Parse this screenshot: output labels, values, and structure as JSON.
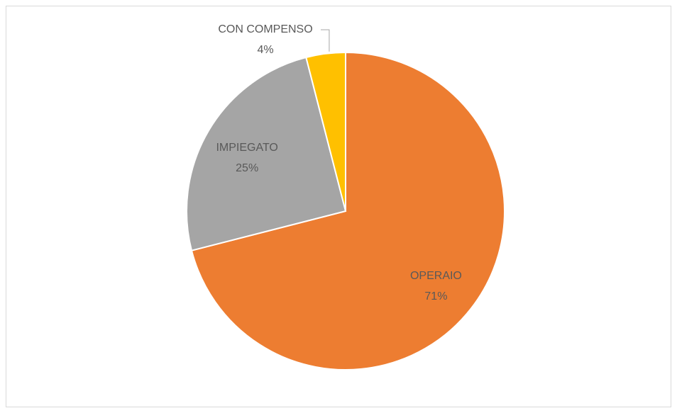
{
  "chart_data": {
    "type": "pie",
    "categories": [
      "OPERAIO",
      "IMPIEGATO",
      "CON COMPENSO"
    ],
    "values": [
      71,
      25,
      4
    ],
    "value_labels": [
      "71%",
      "25%",
      "4%"
    ],
    "colors": [
      "#ED7D31",
      "#A5A5A5",
      "#FFC000"
    ]
  }
}
